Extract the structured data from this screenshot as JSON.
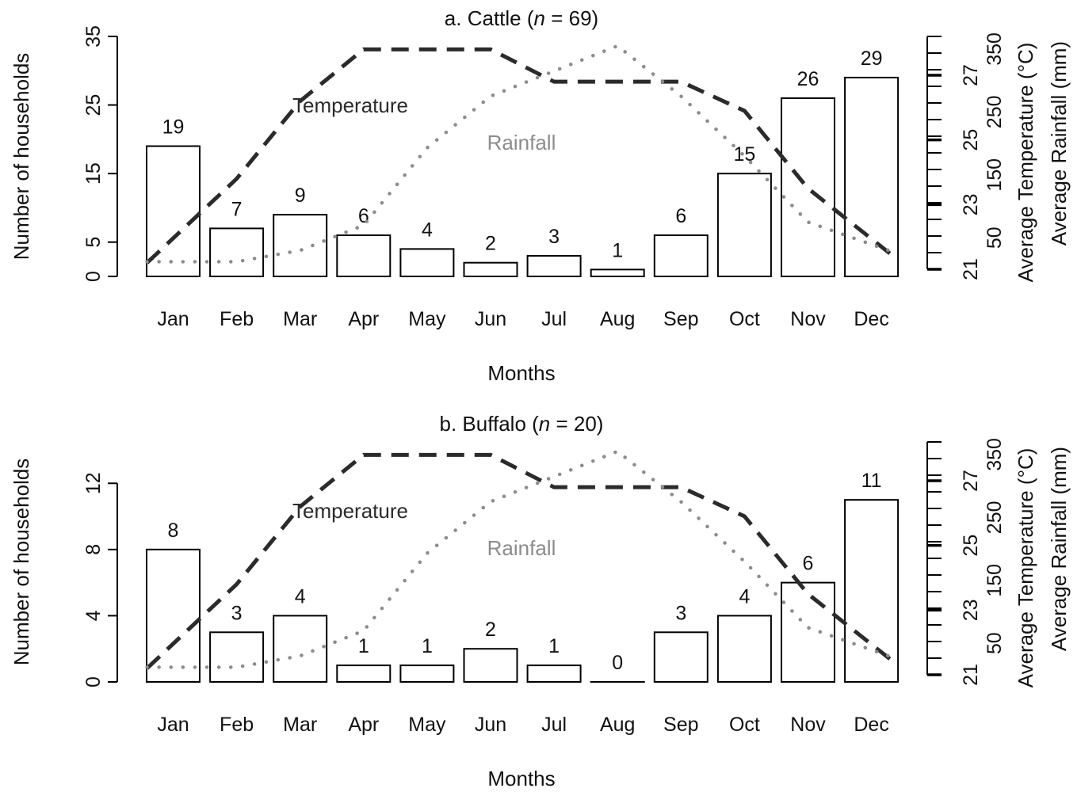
{
  "colors": {
    "bar_fill": "#ffffff",
    "bar_stroke": "#000000",
    "temperature_line": "#2b2b2b",
    "rainfall_line": "#8c8c8c",
    "temperature_label": "#2b2b2b",
    "rainfall_label": "#8c8c8c"
  },
  "chart_data": [
    {
      "type": "bar",
      "title_prefix": "a. Cattle (",
      "title_italic": "n",
      "title_suffix": " = 69)",
      "xlabel": "Months",
      "ylabel": "Number of households",
      "right_ylabel_1": "Average Temperature (°C)",
      "right_ylabel_2": "Average Rainfall (mm)",
      "categories": [
        "Jan",
        "Feb",
        "Mar",
        "Apr",
        "May",
        "Jun",
        "Jul",
        "Aug",
        "Sep",
        "Oct",
        "Nov",
        "Dec"
      ],
      "values": [
        19,
        7,
        9,
        6,
        4,
        2,
        3,
        1,
        6,
        15,
        26,
        29
      ],
      "data_labels": [
        "19",
        "7",
        "9",
        "6",
        "4",
        "2",
        "3",
        "1",
        "6",
        "15",
        "26",
        "29"
      ],
      "ylim": [
        0,
        35
      ],
      "yticks": [
        "0",
        "5",
        "15",
        "25",
        "35"
      ],
      "ytick_values": [
        0,
        5,
        15,
        25,
        35
      ],
      "temp_ticks": [
        "21",
        "23",
        "25",
        "27"
      ],
      "temp_tick_values": [
        21,
        23,
        25,
        27
      ],
      "rain_ticks": [
        "50",
        "150",
        "250",
        "350"
      ],
      "rain_tick_values": [
        50,
        150,
        250,
        350
      ],
      "temperature_ylim": [
        21,
        28.2
      ],
      "rainfall_ylim": [
        0,
        370
      ],
      "temperature": {
        "label": "Temperature",
        "values": [
          21.2,
          23.8,
          26.2,
          27.8,
          27.8,
          27.8,
          26.8,
          26.8,
          26.8,
          25.9,
          23.5,
          21.3
        ]
      },
      "rainfall": {
        "label": "Rainfall",
        "values": [
          12,
          12,
          30,
          70,
          193,
          275,
          315,
          355,
          275,
          180,
          75,
          25
        ]
      }
    },
    {
      "type": "bar",
      "title_prefix": "b. Buffalo (",
      "title_italic": "n",
      "title_suffix": " = 20)",
      "xlabel": "Months",
      "ylabel": "Number of households",
      "right_ylabel_1": "Average Temperature (°C)",
      "right_ylabel_2": "Average Rainfall (mm)",
      "categories": [
        "Jan",
        "Feb",
        "Mar",
        "Apr",
        "May",
        "Jun",
        "Jul",
        "Aug",
        "Sep",
        "Oct",
        "Nov",
        "Dec"
      ],
      "values": [
        8,
        3,
        4,
        1,
        1,
        2,
        1,
        0,
        3,
        4,
        6,
        11
      ],
      "data_labels": [
        "8",
        "3",
        "4",
        "1",
        "1",
        "2",
        "1",
        "0",
        "3",
        "4",
        "6",
        "11"
      ],
      "ylim": [
        0,
        14.5
      ],
      "yticks": [
        "0",
        "4",
        "8",
        "12"
      ],
      "ytick_values": [
        0,
        4,
        8,
        12
      ],
      "temp_ticks": [
        "21",
        "23",
        "25",
        "27"
      ],
      "temp_tick_values": [
        21,
        23,
        25,
        27
      ],
      "rain_ticks": [
        "50",
        "150",
        "250",
        "350"
      ],
      "rain_tick_values": [
        50,
        150,
        250,
        350
      ],
      "temperature_ylim": [
        21,
        28.2
      ],
      "rainfall_ylim": [
        0,
        370
      ],
      "temperature": {
        "label": "Temperature",
        "values": [
          21.2,
          23.8,
          26.2,
          27.8,
          27.8,
          27.8,
          26.8,
          26.8,
          26.8,
          25.9,
          23.5,
          21.3
        ]
      },
      "rainfall": {
        "label": "Rainfall",
        "values": [
          12,
          12,
          30,
          70,
          193,
          275,
          315,
          355,
          275,
          180,
          75,
          25
        ]
      }
    }
  ]
}
